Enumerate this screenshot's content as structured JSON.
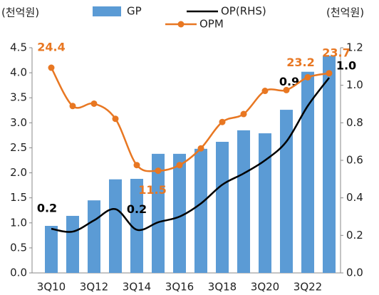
{
  "chart_data": {
    "type": "bar",
    "y_unit_label": "(천억원)",
    "y2_unit_label": "(천억원)",
    "categories": [
      "3Q10",
      null,
      "3Q12",
      null,
      "3Q14",
      null,
      "3Q16",
      null,
      "3Q18",
      null,
      "3Q20",
      null,
      "3Q22",
      null
    ],
    "series": [
      {
        "name": "GP",
        "type": "bar",
        "color": "#5b9bd5",
        "values": [
          0.94,
          1.14,
          1.45,
          1.87,
          1.88,
          2.38,
          2.38,
          2.48,
          2.62,
          2.85,
          2.79,
          3.26,
          4.02,
          4.34
        ]
      },
      {
        "name": "OP(RHS)",
        "type": "line",
        "axis": "y2",
        "color": "#000000",
        "values": [
          0.235,
          0.22,
          0.28,
          0.34,
          0.23,
          0.27,
          0.3,
          0.37,
          0.47,
          0.53,
          0.6,
          0.7,
          0.89,
          1.04
        ],
        "value_labels": [
          "0.2",
          null,
          null,
          null,
          "0.2",
          null,
          null,
          null,
          null,
          null,
          null,
          null,
          "0.9",
          "1.0"
        ]
      },
      {
        "name": "OPM",
        "type": "line",
        "axis": "y3",
        "color": "#e87722",
        "values": [
          24.4,
          19.6,
          19.9,
          18.0,
          12.2,
          11.5,
          12.2,
          14.3,
          17.6,
          18.6,
          21.5,
          21.6,
          23.2,
          23.7
        ],
        "value_labels": [
          "24.4",
          null,
          null,
          null,
          null,
          "11.5",
          null,
          null,
          null,
          null,
          null,
          null,
          "23.2",
          "23.7"
        ]
      }
    ],
    "ylim": [
      0,
      4.5
    ],
    "yticks": [
      {
        "value": 0,
        "label": "0.0"
      },
      0.5,
      {
        "value": 1,
        "label": "1.0"
      },
      1.5,
      {
        "value": 2,
        "label": "2.0"
      },
      2.5,
      {
        "value": 3,
        "label": "3.0"
      },
      3.5,
      {
        "value": 4,
        "label": "4.0"
      },
      4.5
    ],
    "y2lim": [
      0,
      1.2
    ],
    "y2ticks": [
      {
        "value": 0,
        "label": "0.0"
      },
      0.2,
      0.4,
      0.6,
      0.8,
      {
        "value": 1,
        "label": "1.0"
      },
      1.2
    ],
    "y3lim": [
      -1.3,
      26.9
    ],
    "grid": false
  }
}
